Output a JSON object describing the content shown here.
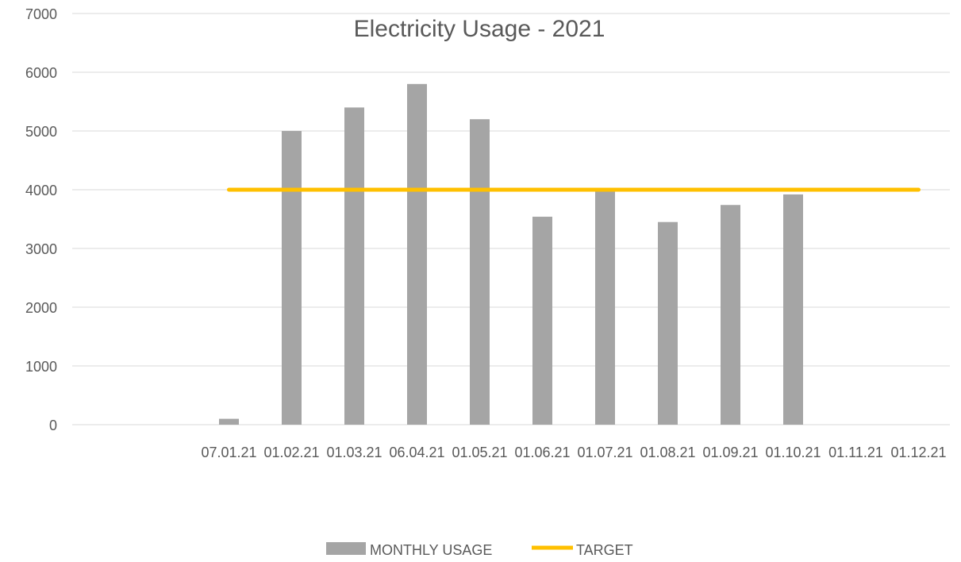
{
  "chart_data": {
    "type": "bar",
    "title": "Electricity Usage - 2021",
    "xlabel": "",
    "ylabel": "",
    "categories": [
      "",
      "",
      "07.01.21",
      "01.02.21",
      "01.03.21",
      "06.04.21",
      "01.05.21",
      "01.06.21",
      "01.07.21",
      "01.08.21",
      "01.09.21",
      "01.10.21",
      "01.11.21",
      "01.12.21"
    ],
    "series": [
      {
        "name": "MONTHLY USAGE",
        "kind": "bar",
        "color": "#a5a5a5",
        "values": [
          null,
          null,
          100,
          5000,
          5400,
          5800,
          5200,
          3540,
          3980,
          3450,
          3740,
          3920,
          null,
          null
        ]
      },
      {
        "name": "TARGET",
        "kind": "line",
        "color": "#ffc000",
        "values": [
          null,
          null,
          4000,
          4000,
          4000,
          4000,
          4000,
          4000,
          4000,
          4000,
          4000,
          4000,
          4000,
          4000
        ]
      }
    ],
    "ylim": [
      0,
      7000
    ],
    "yticks": [
      0,
      1000,
      2000,
      3000,
      4000,
      5000,
      6000,
      7000
    ],
    "grid": true,
    "legend": "bottom"
  }
}
